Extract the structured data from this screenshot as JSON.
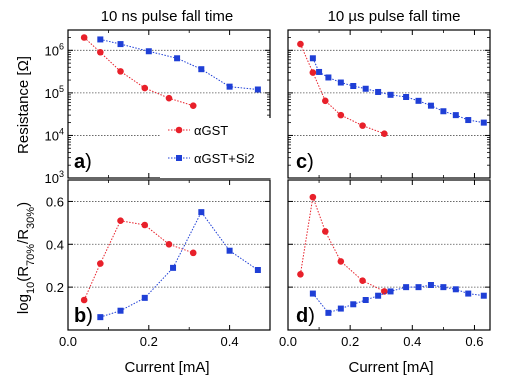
{
  "figure": {
    "title_left": "10 ns pulse fall time",
    "title_right": "10 µs pulse fall time",
    "ylabel_top": "Resistance [Ω]",
    "ylabel_bottom_pre": "log",
    "ylabel_bottom_sub1": "10",
    "ylabel_bottom_mid": "(R",
    "ylabel_bottom_sub2": "70%",
    "ylabel_bottom_mid2": "/R",
    "ylabel_bottom_sub3": "30%",
    "ylabel_bottom_post": ")",
    "xlabel_left": "Current [mA]",
    "xlabel_right": "Current [mA]",
    "legend": [
      "αGST",
      "αGST+Si2"
    ],
    "panel_letters": [
      "a",
      "b",
      "c",
      "d"
    ],
    "colors": {
      "aGST": "#e8202a",
      "aGST_Si2": "#1f3fd6"
    }
  },
  "chart_data": [
    {
      "panel": "a",
      "type": "line",
      "title": "10 ns pulse fall time",
      "ylabel": "Resistance [Ω]",
      "yscale": "log",
      "ylim": [
        1000,
        3000000
      ],
      "xlim": [
        0,
        0.5
      ],
      "yticks": [
        1000,
        10000,
        100000,
        1000000
      ],
      "ytick_labels": [
        [
          "10",
          "3"
        ],
        [
          "10",
          "4"
        ],
        [
          "10",
          "5"
        ],
        [
          "10",
          "6"
        ]
      ],
      "series": [
        {
          "name": "αGST",
          "x": [
            0.04,
            0.08,
            0.13,
            0.19,
            0.25,
            0.31
          ],
          "y": [
            2000000,
            900000,
            320000,
            130000,
            75000,
            50000
          ]
        },
        {
          "name": "αGST+Si2",
          "x": [
            0.08,
            0.13,
            0.2,
            0.27,
            0.33,
            0.4,
            0.47
          ],
          "y": [
            1800000,
            1400000,
            950000,
            650000,
            360000,
            140000,
            120000
          ]
        }
      ]
    },
    {
      "panel": "b",
      "type": "line",
      "ylabel": "log10(R70%/R30%)",
      "xlabel": "Current [mA]",
      "ylim": [
        0.0,
        0.7
      ],
      "xlim": [
        0,
        0.5
      ],
      "yticks": [
        0.2,
        0.4,
        0.6
      ],
      "ytick_labels": [
        "0.2",
        "0.4",
        "0.6"
      ],
      "xticks": [
        0.0,
        0.2,
        0.4
      ],
      "xtick_labels": [
        "0.0",
        "0.2",
        "0.4"
      ],
      "series": [
        {
          "name": "αGST",
          "x": [
            0.04,
            0.08,
            0.13,
            0.19,
            0.25,
            0.31
          ],
          "y": [
            0.14,
            0.31,
            0.51,
            0.49,
            0.4,
            0.36
          ]
        },
        {
          "name": "αGST+Si2",
          "x": [
            0.08,
            0.13,
            0.19,
            0.26,
            0.33,
            0.4,
            0.47
          ],
          "y": [
            0.06,
            0.09,
            0.15,
            0.29,
            0.55,
            0.37,
            0.28
          ]
        }
      ]
    },
    {
      "panel": "c",
      "type": "line",
      "title": "10 µs pulse fall time",
      "yscale": "log",
      "ylim": [
        1000,
        3000000
      ],
      "xlim": [
        0,
        0.65
      ],
      "series": [
        {
          "name": "αGST",
          "x": [
            0.04,
            0.08,
            0.12,
            0.17,
            0.24,
            0.31
          ],
          "y": [
            1400000,
            300000,
            65000,
            30000,
            17000,
            11000
          ]
        },
        {
          "name": "αGST+Si2",
          "x": [
            0.08,
            0.1,
            0.13,
            0.17,
            0.21,
            0.25,
            0.29,
            0.33,
            0.38,
            0.42,
            0.46,
            0.5,
            0.54,
            0.58,
            0.63
          ],
          "y": [
            650000,
            310000,
            230000,
            175000,
            145000,
            125000,
            105000,
            90000,
            80000,
            65000,
            50000,
            37000,
            30000,
            23000,
            20000
          ]
        }
      ]
    },
    {
      "panel": "d",
      "type": "line",
      "xlabel": "Current [mA]",
      "ylim": [
        0.0,
        0.7
      ],
      "xlim": [
        0,
        0.65
      ],
      "xticks": [
        0.0,
        0.2,
        0.4,
        0.6
      ],
      "xtick_labels": [
        "0.0",
        "0.2",
        "0.4",
        "0.6"
      ],
      "series": [
        {
          "name": "αGST",
          "x": [
            0.04,
            0.08,
            0.12,
            0.17,
            0.24,
            0.31
          ],
          "y": [
            0.26,
            0.62,
            0.46,
            0.32,
            0.23,
            0.18
          ]
        },
        {
          "name": "αGST+Si2",
          "x": [
            0.08,
            0.13,
            0.17,
            0.21,
            0.25,
            0.29,
            0.33,
            0.38,
            0.42,
            0.46,
            0.5,
            0.54,
            0.58,
            0.63
          ],
          "y": [
            0.17,
            0.08,
            0.1,
            0.12,
            0.14,
            0.16,
            0.18,
            0.2,
            0.2,
            0.21,
            0.2,
            0.19,
            0.17,
            0.16
          ]
        }
      ]
    }
  ]
}
